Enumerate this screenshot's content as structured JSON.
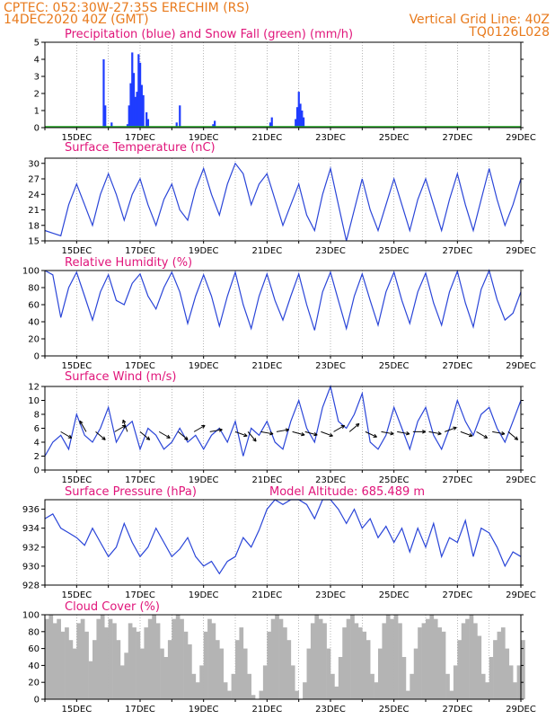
{
  "header": {
    "line1_left": "CPTEC:   052:30W-27:35S  ERECHIM (RS)",
    "line2_left": "14DEC2020 40Z (GMT)",
    "line2_right": "Vertical Grid Line: 40Z",
    "line3_right": "TQ0126L028"
  },
  "colors": {
    "header": "#e87a1c",
    "title": "#e0157a",
    "precip": "#1f3cff",
    "snow": "#22aa22",
    "line": "#2a45d8",
    "cloud": "#b4b4b4",
    "wind_arrow": "#000000"
  },
  "x_ticks": [
    "15DEC",
    "17DEC",
    "19DEC",
    "21DEC",
    "23DEC",
    "25DEC",
    "27DEC",
    "29DEC"
  ],
  "chart_data": [
    {
      "id": "precip",
      "type": "bar",
      "title": "Precipitation (blue) and Snow Fall (green) (mm/h)",
      "ylim": [
        0,
        5
      ],
      "yticks": [
        0,
        1,
        2,
        3,
        4,
        5
      ],
      "xlim_days": [
        14.0,
        29.0
      ],
      "series": [
        {
          "name": "Precipitation",
          "color": "#1f3cff",
          "points": [
            [
              15.85,
              4.0
            ],
            [
              15.9,
              1.3
            ],
            [
              16.1,
              0.3
            ],
            [
              16.6,
              0.2
            ],
            [
              16.65,
              1.3
            ],
            [
              16.7,
              2.6
            ],
            [
              16.75,
              4.4
            ],
            [
              16.8,
              3.2
            ],
            [
              16.85,
              1.8
            ],
            [
              16.9,
              2.1
            ],
            [
              16.95,
              4.3
            ],
            [
              17.0,
              3.8
            ],
            [
              17.05,
              2.5
            ],
            [
              17.1,
              1.9
            ],
            [
              17.2,
              0.9
            ],
            [
              17.25,
              0.5
            ],
            [
              18.15,
              0.3
            ],
            [
              18.25,
              1.3
            ],
            [
              19.3,
              0.2
            ],
            [
              19.35,
              0.4
            ],
            [
              21.1,
              0.3
            ],
            [
              21.15,
              0.6
            ],
            [
              21.9,
              0.5
            ],
            [
              21.95,
              1.2
            ],
            [
              22.0,
              2.1
            ],
            [
              22.05,
              1.4
            ],
            [
              22.1,
              1.0
            ],
            [
              22.15,
              0.6
            ]
          ]
        },
        {
          "name": "Snow Fall",
          "color": "#22aa22",
          "points": []
        }
      ]
    },
    {
      "id": "temperature",
      "type": "line",
      "title": "Surface Temperature (nC)",
      "ylim": [
        15,
        31
      ],
      "yticks": [
        15,
        18,
        21,
        24,
        27,
        30
      ],
      "x": [
        14.0,
        14.25,
        14.5,
        14.75,
        15.0,
        15.25,
        15.5,
        15.75,
        16.0,
        16.25,
        16.5,
        16.75,
        17.0,
        17.25,
        17.5,
        17.75,
        18.0,
        18.25,
        18.5,
        18.75,
        19.0,
        19.25,
        19.5,
        19.75,
        20.0,
        20.25,
        20.5,
        20.75,
        21.0,
        21.25,
        21.5,
        21.75,
        22.0,
        22.25,
        22.5,
        22.75,
        23.0,
        23.25,
        23.5,
        23.75,
        24.0,
        24.25,
        24.5,
        24.75,
        25.0,
        25.25,
        25.5,
        25.75,
        26.0,
        26.25,
        26.5,
        26.75,
        27.0,
        27.25,
        27.5,
        27.75,
        28.0,
        28.25,
        28.5,
        28.75,
        29.0
      ],
      "y": [
        17,
        16.5,
        16,
        22,
        26,
        22,
        18,
        24,
        28,
        24,
        19,
        24,
        27,
        22,
        18,
        23,
        26,
        21,
        19,
        25,
        29,
        24,
        20,
        26,
        30,
        28,
        22,
        26,
        28,
        23,
        18,
        22,
        26,
        20,
        17,
        24,
        29,
        22,
        15,
        21,
        27,
        21,
        17,
        22,
        27,
        22,
        17,
        23,
        27,
        22,
        17,
        23,
        28,
        22,
        17,
        23,
        29,
        23,
        18,
        22,
        27
      ]
    },
    {
      "id": "humidity",
      "type": "line",
      "title": "Relative Humidity (%)",
      "ylim": [
        0,
        100
      ],
      "yticks": [
        0,
        20,
        40,
        60,
        80,
        100
      ],
      "x": [
        14.0,
        14.25,
        14.5,
        14.75,
        15.0,
        15.25,
        15.5,
        15.75,
        16.0,
        16.25,
        16.5,
        16.75,
        17.0,
        17.25,
        17.5,
        17.75,
        18.0,
        18.25,
        18.5,
        18.75,
        19.0,
        19.25,
        19.5,
        19.75,
        20.0,
        20.25,
        20.5,
        20.75,
        21.0,
        21.25,
        21.5,
        21.75,
        22.0,
        22.25,
        22.5,
        22.75,
        23.0,
        23.25,
        23.5,
        23.75,
        24.0,
        24.25,
        24.5,
        24.75,
        25.0,
        25.25,
        25.5,
        25.75,
        26.0,
        26.25,
        26.5,
        26.75,
        27.0,
        27.25,
        27.5,
        27.75,
        28.0,
        28.25,
        28.5,
        28.75,
        29.0
      ],
      "y": [
        100,
        95,
        45,
        80,
        98,
        70,
        42,
        75,
        95,
        65,
        60,
        85,
        96,
        70,
        55,
        80,
        98,
        75,
        38,
        70,
        95,
        70,
        35,
        70,
        98,
        60,
        32,
        70,
        96,
        65,
        42,
        70,
        96,
        60,
        30,
        75,
        98,
        65,
        32,
        70,
        96,
        65,
        36,
        75,
        98,
        65,
        38,
        75,
        97,
        62,
        36,
        75,
        99,
        62,
        34,
        78,
        100,
        66,
        42,
        50,
        75
      ]
    },
    {
      "id": "wind",
      "type": "line",
      "title": "Surface Wind (m/s)",
      "ylim": [
        0,
        12
      ],
      "yticks": [
        0,
        2,
        4,
        6,
        8,
        10,
        12
      ],
      "x": [
        14.0,
        14.25,
        14.5,
        14.75,
        15.0,
        15.25,
        15.5,
        15.75,
        16.0,
        16.25,
        16.5,
        16.75,
        17.0,
        17.25,
        17.5,
        17.75,
        18.0,
        18.25,
        18.5,
        18.75,
        19.0,
        19.25,
        19.5,
        19.75,
        20.0,
        20.25,
        20.5,
        20.75,
        21.0,
        21.25,
        21.5,
        21.75,
        22.0,
        22.25,
        22.5,
        22.75,
        23.0,
        23.25,
        23.5,
        23.75,
        24.0,
        24.25,
        24.5,
        24.75,
        25.0,
        25.25,
        25.5,
        25.75,
        26.0,
        26.25,
        26.5,
        26.75,
        27.0,
        27.25,
        27.5,
        27.75,
        28.0,
        28.25,
        28.5,
        28.75,
        29.0
      ],
      "y": [
        2,
        4,
        5,
        3,
        8,
        5,
        4,
        6,
        9,
        4,
        6,
        7,
        3,
        6,
        5,
        3,
        4,
        6,
        4,
        5,
        3,
        5,
        6,
        4,
        7,
        2,
        6,
        5,
        7,
        4,
        3,
        7,
        10,
        6,
        4,
        9,
        12,
        7,
        6,
        8,
        11,
        4,
        3,
        5,
        9,
        6,
        3,
        7,
        9,
        5,
        3,
        6,
        10,
        7,
        5,
        8,
        9,
        6,
        4,
        7,
        10
      ],
      "arrows": [
        {
          "day": 14.5,
          "dir": -30
        },
        {
          "day": 15.3,
          "dir": 120
        },
        {
          "day": 15.6,
          "dir": -40
        },
        {
          "day": 16.2,
          "dir": 30
        },
        {
          "day": 16.6,
          "dir": 110
        },
        {
          "day": 17.0,
          "dir": -40
        },
        {
          "day": 17.6,
          "dir": -30
        },
        {
          "day": 18.2,
          "dir": -40
        },
        {
          "day": 18.7,
          "dir": 30
        },
        {
          "day": 19.2,
          "dir": 10
        },
        {
          "day": 20.0,
          "dir": -20
        },
        {
          "day": 20.4,
          "dir": -50
        },
        {
          "day": 20.8,
          "dir": -10
        },
        {
          "day": 21.3,
          "dir": 10
        },
        {
          "day": 21.8,
          "dir": -15
        },
        {
          "day": 22.2,
          "dir": -15
        },
        {
          "day": 22.7,
          "dir": -20
        },
        {
          "day": 23.1,
          "dir": 30
        },
        {
          "day": 23.6,
          "dir": 40
        },
        {
          "day": 24.1,
          "dir": -25
        },
        {
          "day": 24.6,
          "dir": -10
        },
        {
          "day": 25.1,
          "dir": -10
        },
        {
          "day": 25.6,
          "dir": 0
        },
        {
          "day": 26.1,
          "dir": -10
        },
        {
          "day": 26.6,
          "dir": 20
        },
        {
          "day": 27.1,
          "dir": -20
        },
        {
          "day": 27.6,
          "dir": -30
        },
        {
          "day": 28.1,
          "dir": -10
        },
        {
          "day": 28.6,
          "dir": -40
        }
      ]
    },
    {
      "id": "pressure",
      "type": "line",
      "title": "Surface Pressure (hPa)",
      "annotation": "Model Altitude: 685.489 m",
      "ylim": [
        928,
        937
      ],
      "yticks": [
        928,
        930,
        932,
        934,
        936
      ],
      "x": [
        14.0,
        14.25,
        14.5,
        14.75,
        15.0,
        15.25,
        15.5,
        15.75,
        16.0,
        16.25,
        16.5,
        16.75,
        17.0,
        17.25,
        17.5,
        17.75,
        18.0,
        18.25,
        18.5,
        18.75,
        19.0,
        19.25,
        19.5,
        19.75,
        20.0,
        20.25,
        20.5,
        20.75,
        21.0,
        21.25,
        21.5,
        21.75,
        22.0,
        22.25,
        22.5,
        22.75,
        23.0,
        23.25,
        23.5,
        23.75,
        24.0,
        24.25,
        24.5,
        24.75,
        25.0,
        25.25,
        25.5,
        25.75,
        26.0,
        26.25,
        26.5,
        26.75,
        27.0,
        27.25,
        27.5,
        27.75,
        28.0,
        28.25,
        28.5,
        28.75,
        29.0
      ],
      "y": [
        935,
        935.5,
        934,
        933.5,
        933,
        932.2,
        934,
        932.5,
        931,
        932,
        934.5,
        932.5,
        931,
        932,
        934,
        932.5,
        931,
        931.8,
        933,
        931,
        930,
        930.5,
        929.2,
        930.5,
        931,
        933,
        932,
        933.8,
        936,
        937.2,
        936.5,
        937,
        937.5,
        936.5,
        935,
        937,
        937,
        936,
        934.5,
        936,
        934,
        935,
        933,
        934.2,
        932.5,
        934,
        931.5,
        934,
        932,
        934.5,
        931,
        933,
        932.5,
        934.8,
        931,
        934,
        933.5,
        932,
        930,
        931.5,
        931
      ]
    },
    {
      "id": "cloud",
      "type": "bar",
      "title": "Cloud Cover (%)",
      "ylim": [
        0,
        100
      ],
      "yticks": [
        0,
        20,
        40,
        60,
        80,
        100
      ],
      "x_start": 14.0,
      "x_step": 0.125,
      "values": [
        95,
        100,
        90,
        95,
        80,
        85,
        70,
        60,
        90,
        95,
        80,
        45,
        70,
        95,
        100,
        85,
        95,
        90,
        70,
        40,
        55,
        90,
        85,
        80,
        60,
        85,
        95,
        100,
        90,
        60,
        50,
        70,
        95,
        100,
        95,
        80,
        65,
        30,
        20,
        40,
        80,
        95,
        90,
        70,
        60,
        20,
        10,
        30,
        70,
        85,
        60,
        30,
        5,
        0,
        10,
        40,
        80,
        95,
        100,
        95,
        85,
        70,
        40,
        10,
        0,
        20,
        60,
        90,
        100,
        95,
        90,
        60,
        30,
        15,
        50,
        85,
        95,
        100,
        90,
        85,
        80,
        70,
        30,
        20,
        60,
        90,
        100,
        95,
        100,
        90,
        50,
        10,
        30,
        60,
        85,
        90,
        95,
        100,
        95,
        85,
        80,
        30,
        10,
        40,
        70,
        90,
        95,
        100,
        90,
        75,
        30,
        20,
        50,
        70,
        80,
        85,
        60,
        40,
        20,
        40,
        70,
        90,
        95,
        100,
        90,
        60,
        30,
        10
      ]
    }
  ]
}
